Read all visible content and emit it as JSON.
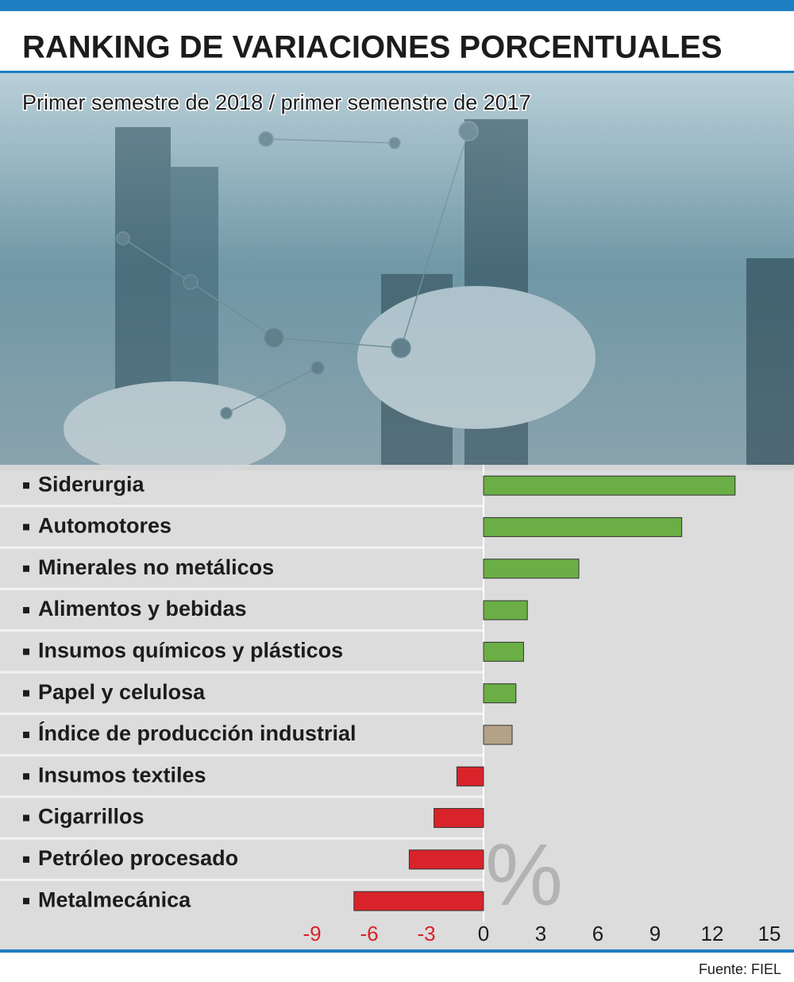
{
  "chart_data": {
    "type": "barh",
    "title": "RANKING DE VARIACIONES PORCENTUALES",
    "subtitle": "Primer semestre de 2018 / primer semenstre de 2017",
    "categories": [
      "Siderurgia",
      "Automotores",
      "Minerales no metálicos",
      "Alimentos y bebidas",
      "Insumos químicos y plásticos",
      "Papel y celulosa",
      "Índice de producción industrial",
      "Insumos textiles",
      "Cigarrillos",
      "Petróleo procesado",
      "Metalmecánica"
    ],
    "values": [
      13.2,
      10.4,
      5.0,
      2.3,
      2.1,
      1.7,
      1.5,
      -1.4,
      -2.6,
      -3.9,
      -6.8
    ],
    "colors": [
      "#6aae45",
      "#6aae45",
      "#6aae45",
      "#6aae45",
      "#6aae45",
      "#6aae45",
      "#b3a287",
      "#d8232a",
      "#d8232a",
      "#d8232a",
      "#d8232a"
    ],
    "xlim": [
      -9,
      15
    ],
    "xticks": [
      -9,
      -6,
      -3,
      0,
      3,
      6,
      9,
      12,
      15
    ],
    "annotation": "%",
    "source": "Fuente: FIEL"
  }
}
